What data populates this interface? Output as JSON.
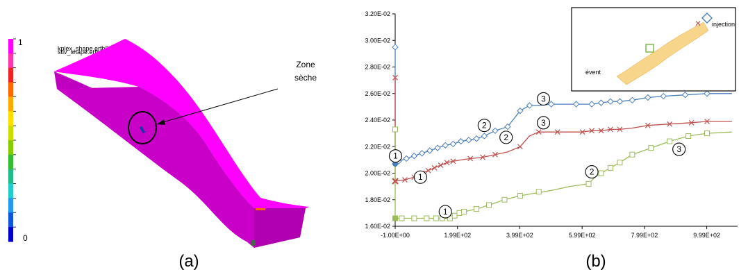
{
  "left_panel": {
    "label": "(a)",
    "colorbar": {
      "max_label": "1",
      "min_label": "0",
      "colors": [
        "#ff00ff",
        "#ff33aa",
        "#ee2222",
        "#ff6600",
        "#ffaa00",
        "#ffdd00",
        "#ccdd00",
        "#88cc00",
        "#33bb33",
        "#22bb88",
        "#22cccc",
        "#2299ee",
        "#1155dd",
        "#0000cc"
      ]
    },
    "annotation": {
      "line1": "Zone",
      "line2": "sèche"
    },
    "header_lines": [
      "kplex_shape.erfh5",
      "stiv_shape.erfh5"
    ],
    "colors": {
      "part_top": "#ff00ff",
      "part_side": "#cc00cc",
      "part_front": "#aa00aa",
      "dry_mark": "#2233aa"
    }
  },
  "right_panel": {
    "label": "(b)"
  },
  "inset": {
    "injection_label": "injection",
    "event_label": "évent",
    "band_color": "#f7d58a"
  },
  "chart_data": {
    "type": "line",
    "x_ticks": [
      -1,
      199,
      399,
      599,
      799,
      999
    ],
    "x_tick_labels": [
      "-1.00E+00",
      "1.99E+02",
      "3.99E+02",
      "5.99E+02",
      "7.99E+02",
      "9.99E+02"
    ],
    "y_ticks": [
      0.016,
      0.018,
      0.02,
      0.022,
      0.024,
      0.026,
      0.028,
      0.03,
      0.032
    ],
    "y_tick_labels": [
      "1.60E-02",
      "1.80E-02",
      "2.00E-02",
      "2.20E-02",
      "2.40E-02",
      "2.60E-02",
      "2.80E-02",
      "3.00E-02",
      "3.20E-02"
    ],
    "xlim": [
      -1,
      1098
    ],
    "ylim": [
      0.016,
      0.032
    ],
    "series": [
      {
        "color": "#4a7ebb",
        "marker": "diamond",
        "points": [
          [
            -1,
            0.0295
          ],
          [
            -1,
            0.0207
          ],
          [
            10,
            0.0209
          ],
          [
            35,
            0.0211
          ],
          [
            60,
            0.0213
          ],
          [
            85,
            0.0215
          ],
          [
            110,
            0.0217
          ],
          [
            135,
            0.0219
          ],
          [
            160,
            0.0221
          ],
          [
            185,
            0.0222
          ],
          [
            210,
            0.0224
          ],
          [
            235,
            0.0225
          ],
          [
            260,
            0.0226
          ],
          [
            285,
            0.0228
          ],
          [
            320,
            0.0232
          ],
          [
            360,
            0.0235
          ],
          [
            400,
            0.0247
          ],
          [
            430,
            0.0251
          ],
          [
            460,
            0.0251
          ],
          [
            500,
            0.0252
          ],
          [
            540,
            0.0252
          ],
          [
            580,
            0.0252
          ],
          [
            630,
            0.0252
          ],
          [
            660,
            0.0253
          ],
          [
            690,
            0.0254
          ],
          [
            720,
            0.0254
          ],
          [
            760,
            0.0255
          ],
          [
            810,
            0.0257
          ],
          [
            860,
            0.0258
          ],
          [
            930,
            0.0259
          ],
          [
            1000,
            0.026
          ],
          [
            1080,
            0.026
          ]
        ],
        "marked": [
          [
            -1,
            0.0295
          ],
          [
            -1,
            0.0207
          ],
          [
            10,
            0.0209
          ],
          [
            35,
            0.0211
          ],
          [
            60,
            0.0213
          ],
          [
            85,
            0.0215
          ],
          [
            110,
            0.0217
          ],
          [
            135,
            0.0219
          ],
          [
            160,
            0.0221
          ],
          [
            185,
            0.0222
          ],
          [
            210,
            0.0224
          ],
          [
            235,
            0.0225
          ],
          [
            260,
            0.0226
          ],
          [
            285,
            0.0228
          ],
          [
            320,
            0.0232
          ],
          [
            360,
            0.0235
          ],
          [
            400,
            0.0247
          ],
          [
            430,
            0.0251
          ],
          [
            500,
            0.0252
          ],
          [
            580,
            0.0252
          ],
          [
            630,
            0.0252
          ],
          [
            660,
            0.0253
          ],
          [
            690,
            0.0254
          ],
          [
            720,
            0.0254
          ],
          [
            760,
            0.0255
          ],
          [
            810,
            0.0257
          ],
          [
            860,
            0.0258
          ],
          [
            930,
            0.0259
          ],
          [
            1000,
            0.026
          ]
        ]
      },
      {
        "color": "#c0504d",
        "marker": "x",
        "points": [
          [
            -1,
            0.0272
          ],
          [
            -1,
            0.0194
          ],
          [
            30,
            0.0195
          ],
          [
            60,
            0.0197
          ],
          [
            85,
            0.02
          ],
          [
            105,
            0.0202
          ],
          [
            125,
            0.0204
          ],
          [
            145,
            0.0206
          ],
          [
            165,
            0.0208
          ],
          [
            185,
            0.0209
          ],
          [
            210,
            0.021
          ],
          [
            240,
            0.0211
          ],
          [
            280,
            0.0212
          ],
          [
            320,
            0.0214
          ],
          [
            360,
            0.0216
          ],
          [
            400,
            0.022
          ],
          [
            430,
            0.0228
          ],
          [
            460,
            0.0231
          ],
          [
            520,
            0.0231
          ],
          [
            600,
            0.0231
          ],
          [
            630,
            0.0232
          ],
          [
            660,
            0.0232
          ],
          [
            690,
            0.0233
          ],
          [
            720,
            0.0233
          ],
          [
            760,
            0.0234
          ],
          [
            810,
            0.0236
          ],
          [
            880,
            0.0237
          ],
          [
            950,
            0.0238
          ],
          [
            1000,
            0.0239
          ],
          [
            1080,
            0.0239
          ]
        ],
        "marked": [
          [
            -1,
            0.0272
          ],
          [
            -1,
            0.0194
          ],
          [
            30,
            0.0195
          ],
          [
            60,
            0.0197
          ],
          [
            85,
            0.02
          ],
          [
            105,
            0.0202
          ],
          [
            125,
            0.0204
          ],
          [
            145,
            0.0206
          ],
          [
            165,
            0.0208
          ],
          [
            185,
            0.0209
          ],
          [
            240,
            0.0211
          ],
          [
            280,
            0.0212
          ],
          [
            320,
            0.0214
          ],
          [
            400,
            0.022
          ],
          [
            460,
            0.0231
          ],
          [
            520,
            0.0231
          ],
          [
            600,
            0.0231
          ],
          [
            630,
            0.0232
          ],
          [
            660,
            0.0232
          ],
          [
            690,
            0.0233
          ],
          [
            720,
            0.0233
          ],
          [
            810,
            0.0236
          ],
          [
            880,
            0.0237
          ],
          [
            950,
            0.0238
          ],
          [
            1000,
            0.0239
          ]
        ]
      },
      {
        "color": "#9bbb59",
        "marker": "square",
        "points": [
          [
            -1,
            0.0233
          ],
          [
            -1,
            0.0166
          ],
          [
            20,
            0.0166
          ],
          [
            60,
            0.0166
          ],
          [
            100,
            0.0166
          ],
          [
            130,
            0.0166
          ],
          [
            150,
            0.0166
          ],
          [
            175,
            0.0166
          ],
          [
            190,
            0.0168
          ],
          [
            205,
            0.017
          ],
          [
            220,
            0.0171
          ],
          [
            260,
            0.0173
          ],
          [
            300,
            0.0176
          ],
          [
            350,
            0.018
          ],
          [
            400,
            0.0183
          ],
          [
            450,
            0.0185
          ],
          [
            500,
            0.0187
          ],
          [
            560,
            0.019
          ],
          [
            620,
            0.0192
          ],
          [
            640,
            0.0197
          ],
          [
            660,
            0.02
          ],
          [
            690,
            0.0204
          ],
          [
            720,
            0.0208
          ],
          [
            760,
            0.0214
          ],
          [
            820,
            0.0219
          ],
          [
            880,
            0.0224
          ],
          [
            940,
            0.0228
          ],
          [
            1000,
            0.023
          ],
          [
            1080,
            0.0231
          ]
        ],
        "marked": [
          [
            -1,
            0.0233
          ],
          [
            -1,
            0.0166
          ],
          [
            20,
            0.0166
          ],
          [
            60,
            0.0166
          ],
          [
            100,
            0.0166
          ],
          [
            130,
            0.0166
          ],
          [
            150,
            0.0166
          ],
          [
            175,
            0.0166
          ],
          [
            190,
            0.0168
          ],
          [
            205,
            0.017
          ],
          [
            220,
            0.0171
          ],
          [
            260,
            0.0173
          ],
          [
            300,
            0.0176
          ],
          [
            350,
            0.018
          ],
          [
            400,
            0.0183
          ],
          [
            460,
            0.0186
          ],
          [
            620,
            0.0192
          ],
          [
            660,
            0.02
          ],
          [
            690,
            0.0204
          ],
          [
            720,
            0.0208
          ],
          [
            760,
            0.0214
          ],
          [
            820,
            0.0219
          ],
          [
            880,
            0.0224
          ],
          [
            940,
            0.0228
          ],
          [
            1000,
            0.023
          ]
        ]
      }
    ],
    "annotations": [
      {
        "text": "1",
        "x": 0,
        "y": 0.0213
      },
      {
        "text": "1",
        "x": 80,
        "y": 0.0197
      },
      {
        "text": "1",
        "x": 160,
        "y": 0.0171
      },
      {
        "text": "2",
        "x": 285,
        "y": 0.0236
      },
      {
        "text": "2",
        "x": 355,
        "y": 0.0227
      },
      {
        "text": "2",
        "x": 630,
        "y": 0.0201
      },
      {
        "text": "3",
        "x": 475,
        "y": 0.0256
      },
      {
        "text": "3",
        "x": 475,
        "y": 0.0238
      },
      {
        "text": "3",
        "x": 910,
        "y": 0.0218
      }
    ]
  }
}
